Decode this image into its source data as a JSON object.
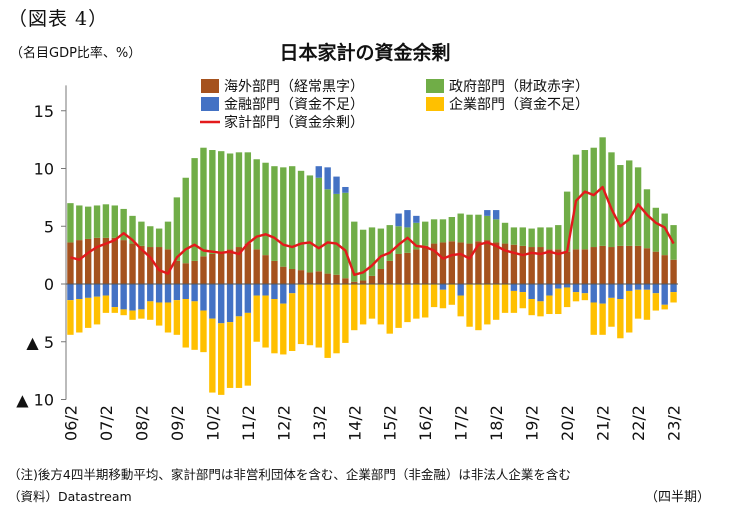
{
  "figure_label": "（図表 4）",
  "unit_label": "（名目GDP比率、%）",
  "title": "日本家計の資金余剰",
  "period_label": "（四半期）",
  "note": "（注)後方4四半期移動平均、家計部門は非営利団体を含む、企業部門（非金融）は非法人企業を含む",
  "source": "（資料）Datastream",
  "chart_data": {
    "type": "bar",
    "stacked": true,
    "title": "日本家計の資金余剰",
    "ylabel": "名目GDP比率、%",
    "xlabel": "四半期",
    "ylim": [
      -10,
      17
    ],
    "yticks": [
      {
        "value": 15,
        "label": "15"
      },
      {
        "value": 10,
        "label": "10"
      },
      {
        "value": 5,
        "label": "5"
      },
      {
        "value": 0,
        "label": "0"
      },
      {
        "value": -5,
        "label": "▲ 5"
      },
      {
        "value": -10,
        "label": "▲ 10"
      }
    ],
    "categories": [
      "06/2",
      "06/3",
      "06/4",
      "07/1",
      "07/2",
      "07/3",
      "07/4",
      "08/1",
      "08/2",
      "08/3",
      "08/4",
      "09/1",
      "09/2",
      "09/3",
      "09/4",
      "10/1",
      "10/2",
      "10/3",
      "10/4",
      "11/1",
      "11/2",
      "11/3",
      "11/4",
      "12/1",
      "12/2",
      "12/3",
      "12/4",
      "13/1",
      "13/2",
      "13/3",
      "13/4",
      "14/1",
      "14/2",
      "14/3",
      "14/4",
      "15/1",
      "15/2",
      "15/3",
      "15/4",
      "16/1",
      "16/2",
      "16/3",
      "16/4",
      "17/1",
      "17/2",
      "17/3",
      "17/4",
      "18/1",
      "18/2",
      "18/3",
      "18/4",
      "19/1",
      "19/2",
      "19/3",
      "19/4",
      "20/1",
      "20/2",
      "20/3",
      "20/4",
      "21/1",
      "21/2",
      "21/3",
      "21/4",
      "22/1",
      "22/2",
      "22/3",
      "22/4",
      "23/1",
      "23/2"
    ],
    "xtick_labels": [
      "06/2",
      "07/2",
      "08/2",
      "09/2",
      "10/2",
      "11/2",
      "12/2",
      "13/2",
      "14/2",
      "15/2",
      "16/2",
      "17/2",
      "18/2",
      "19/2",
      "20/2",
      "21/2",
      "22/2",
      "23/2"
    ],
    "series": [
      {
        "name": "海外部門（経常黒字）",
        "color": "#a5521e",
        "values": [
          3.6,
          3.8,
          3.9,
          4.0,
          4.0,
          4.0,
          3.8,
          3.5,
          3.3,
          3.2,
          3.2,
          3.0,
          2.0,
          1.8,
          2.0,
          2.4,
          2.6,
          2.8,
          3.0,
          3.2,
          3.5,
          3.0,
          2.5,
          2.0,
          1.5,
          1.3,
          1.2,
          1.0,
          1.1,
          0.9,
          0.8,
          0.5,
          0.2,
          0.3,
          0.7,
          1.3,
          2.0,
          2.6,
          2.7,
          3.0,
          3.3,
          3.5,
          3.6,
          3.7,
          3.6,
          3.5,
          3.7,
          3.8,
          3.6,
          3.5,
          3.4,
          3.3,
          3.2,
          3.2,
          3.0,
          3.0,
          2.8,
          3.0,
          3.0,
          3.2,
          3.3,
          3.2,
          3.3,
          3.3,
          3.3,
          3.1,
          2.8,
          2.5,
          2.1
        ]
      },
      {
        "name": "政府部門（財政赤字）",
        "color": "#70ad47",
        "values": [
          3.4,
          3.0,
          2.8,
          2.8,
          2.9,
          2.8,
          2.7,
          2.4,
          2.1,
          1.8,
          1.6,
          2.4,
          5.5,
          7.4,
          8.9,
          9.4,
          9.0,
          8.7,
          8.3,
          8.2,
          7.9,
          7.8,
          8.0,
          8.2,
          8.6,
          8.9,
          8.6,
          8.4,
          8.1,
          7.3,
          7.0,
          7.4,
          5.2,
          4.4,
          4.2,
          3.5,
          3.1,
          2.4,
          2.2,
          2.3,
          2.1,
          2.1,
          2.0,
          2.1,
          2.5,
          2.5,
          2.3,
          2.1,
          2.0,
          1.8,
          1.5,
          1.6,
          1.6,
          1.7,
          1.9,
          2.1,
          5.2,
          8.2,
          8.6,
          8.6,
          9.4,
          8.2,
          7.0,
          7.4,
          6.8,
          5.1,
          3.8,
          3.6,
          3.0
        ]
      },
      {
        "name": "金融部門（資金不足）",
        "color": "#4472c4",
        "values": [
          -1.4,
          -1.3,
          -1.2,
          -1.1,
          -1.0,
          -2.0,
          -2.2,
          -2.3,
          -2.2,
          -1.5,
          -1.6,
          -1.6,
          -1.4,
          -1.3,
          -1.5,
          -2.3,
          -3.0,
          -3.4,
          -3.3,
          -2.8,
          -2.5,
          -1.0,
          -1.0,
          -1.3,
          -1.7,
          -0.8,
          0.0,
          0.0,
          1.0,
          1.9,
          1.5,
          0.5,
          0.0,
          0.0,
          0.0,
          0.0,
          0.0,
          1.1,
          1.5,
          0.6,
          0.0,
          0.0,
          -0.5,
          0.0,
          -1.0,
          0.0,
          0.0,
          0.5,
          0.8,
          0.0,
          -0.6,
          -0.7,
          -1.3,
          -1.5,
          -1.0,
          -0.4,
          -0.3,
          -0.7,
          -0.8,
          -1.6,
          -1.7,
          -1.2,
          -1.3,
          -0.6,
          -0.5,
          -0.5,
          -0.8,
          -1.8,
          -0.7
        ]
      },
      {
        "name": "企業部門（資金不足）",
        "color": "#ffc000",
        "values": [
          -3.0,
          -2.9,
          -2.6,
          -2.4,
          -1.5,
          -0.5,
          -0.5,
          -0.8,
          -0.8,
          -1.6,
          -2.0,
          -2.6,
          -3.0,
          -4.2,
          -4.2,
          -3.6,
          -6.4,
          -6.2,
          -5.7,
          -6.2,
          -6.3,
          -4.0,
          -4.5,
          -4.7,
          -4.4,
          -5.0,
          -5.2,
          -5.3,
          -5.5,
          -6.4,
          -6.0,
          -5.1,
          -4.0,
          -3.5,
          -3.0,
          -3.5,
          -4.3,
          -3.8,
          -3.3,
          -3.0,
          -2.9,
          -2.0,
          -1.6,
          -1.8,
          -1.8,
          -3.7,
          -4.0,
          -3.5,
          -3.1,
          -2.5,
          -1.9,
          -1.4,
          -1.4,
          -1.3,
          -1.6,
          -2.2,
          -1.7,
          -0.8,
          -0.6,
          -2.8,
          -2.7,
          -2.5,
          -3.4,
          -3.6,
          -2.5,
          -2.6,
          -1.5,
          -0.4,
          -0.9
        ]
      },
      {
        "name": "家計部門（資金余剰）",
        "color": "#e31a1c",
        "type": "line",
        "values": [
          2.3,
          2.1,
          2.7,
          3.2,
          3.5,
          3.8,
          4.4,
          3.8,
          3.0,
          2.3,
          1.2,
          0.9,
          2.3,
          3.0,
          3.4,
          2.9,
          2.8,
          2.7,
          2.8,
          2.6,
          3.5,
          4.1,
          4.3,
          4.0,
          3.4,
          3.2,
          3.5,
          3.6,
          3.1,
          3.6,
          3.5,
          2.9,
          0.8,
          1.0,
          1.6,
          2.4,
          2.7,
          3.4,
          4.0,
          3.3,
          3.2,
          2.9,
          2.2,
          2.5,
          2.6,
          2.2,
          3.4,
          3.6,
          3.3,
          2.9,
          2.7,
          2.5,
          2.7,
          2.6,
          2.8,
          2.6,
          2.8,
          7.2,
          8.0,
          7.7,
          8.4,
          6.5,
          5.0,
          5.6,
          6.9,
          6.0,
          5.3,
          4.9,
          3.5
        ]
      }
    ],
    "legend": {
      "placement": "top-center",
      "columns": 2
    }
  }
}
